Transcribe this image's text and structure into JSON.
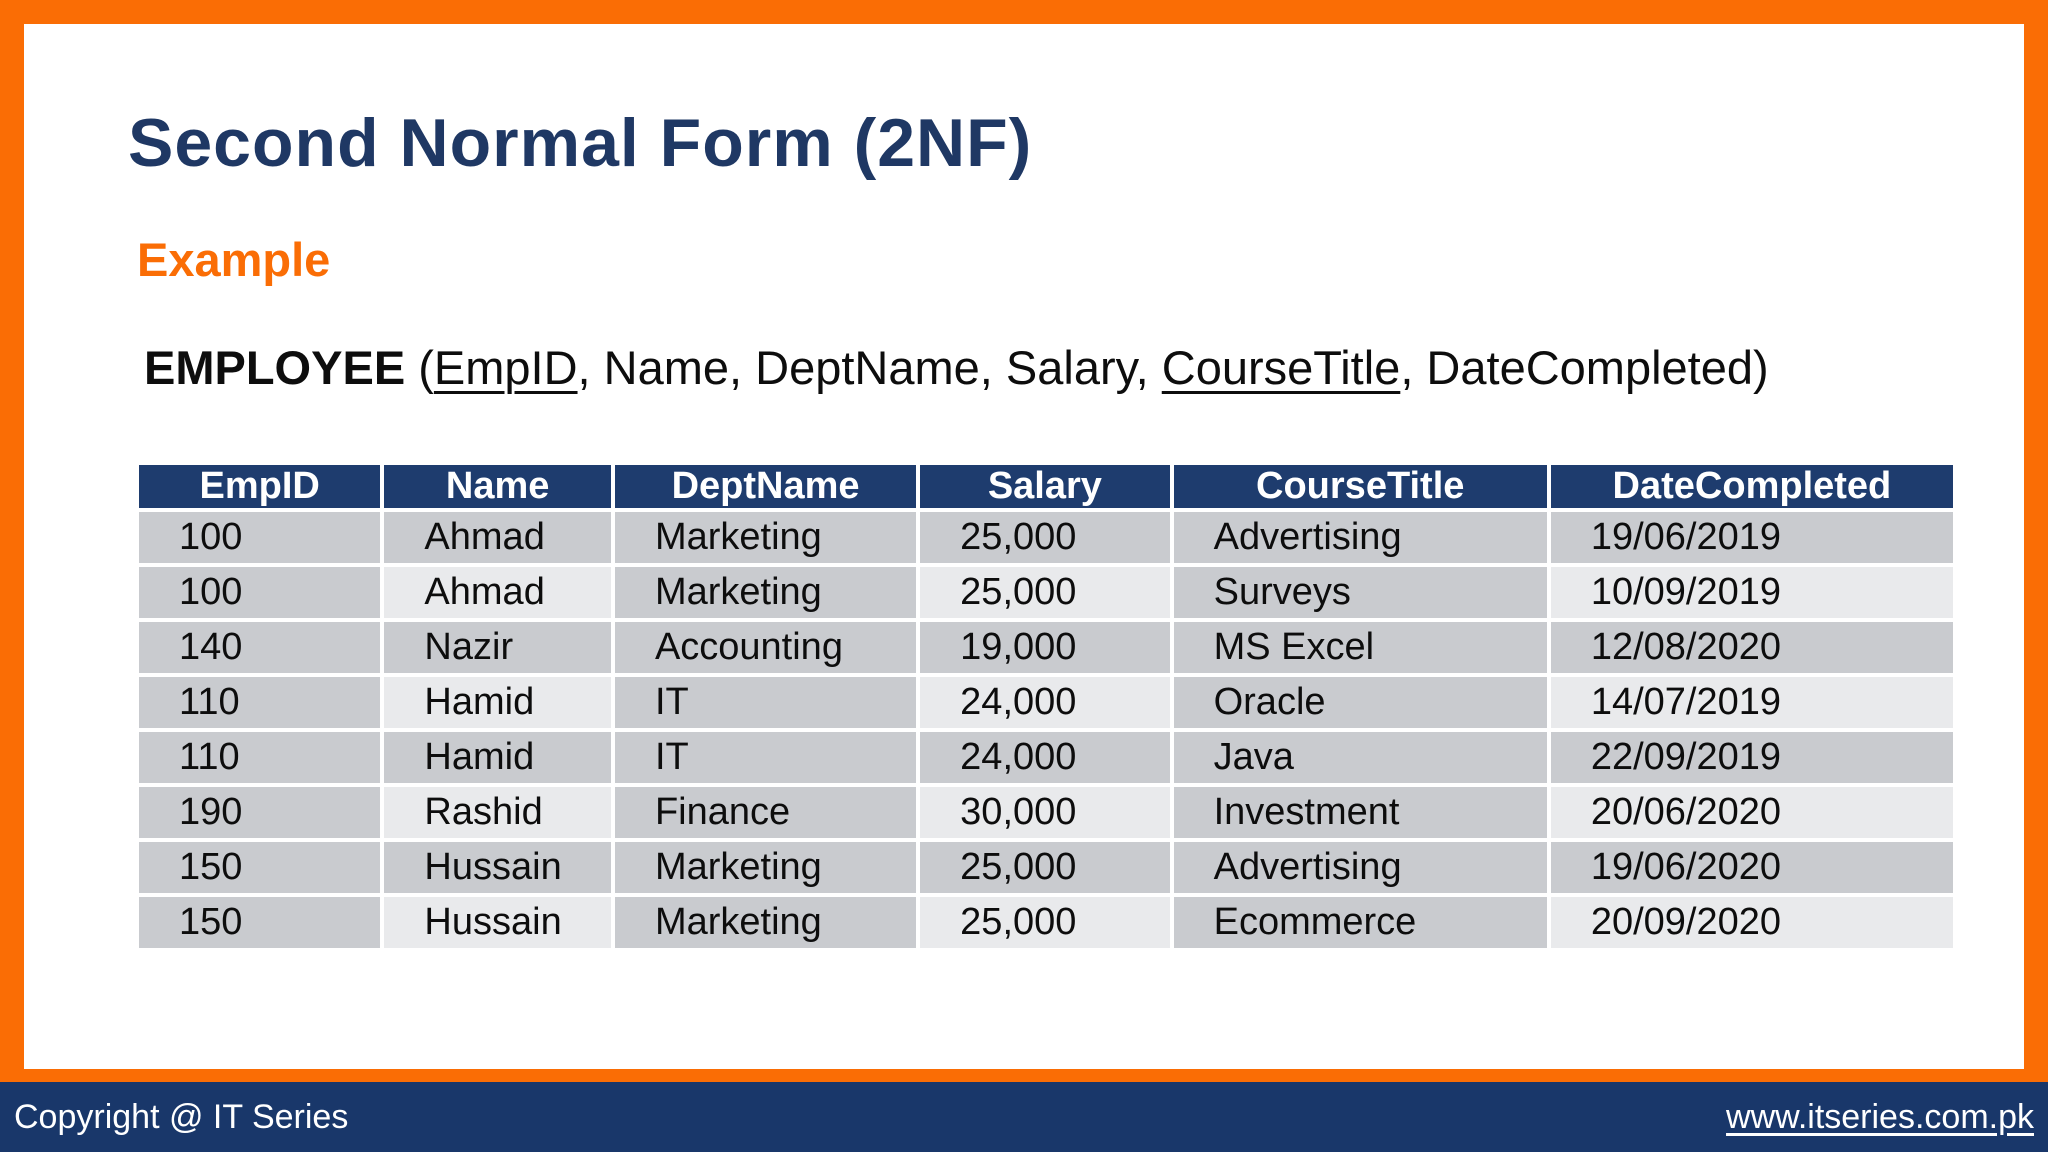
{
  "slide": {
    "title": "Second Normal Form (2NF)",
    "subtitle": "Example",
    "relation_segments": [
      {
        "text": "EMPLOYEE",
        "bold": true,
        "underline": false
      },
      {
        "text": " (",
        "bold": false,
        "underline": false
      },
      {
        "text": "EmpID",
        "bold": false,
        "underline": true
      },
      {
        "text": ", Name, DeptName, Salary, ",
        "bold": false,
        "underline": false
      },
      {
        "text": "CourseTitle",
        "bold": false,
        "underline": true
      },
      {
        "text": ", DateCompleted)",
        "bold": false,
        "underline": false
      }
    ]
  },
  "table": {
    "columns": [
      "EmpID",
      "Name",
      "DeptName",
      "Salary",
      "CourseTitle",
      "DateCompleted"
    ],
    "rows": [
      [
        "100",
        "Ahmad",
        "Marketing",
        "25,000",
        "Advertising",
        "19/06/2019"
      ],
      [
        "100",
        "Ahmad",
        "Marketing",
        "25,000",
        "Surveys",
        "10/09/2019"
      ],
      [
        "140",
        "Nazir",
        "Accounting",
        "19,000",
        "MS Excel",
        "12/08/2020"
      ],
      [
        "110",
        "Hamid",
        "IT",
        "24,000",
        "Oracle",
        "14/07/2019"
      ],
      [
        "110",
        "Hamid",
        "IT",
        "24,000",
        "Java",
        "22/09/2019"
      ],
      [
        "190",
        "Rashid",
        "Finance",
        "30,000",
        "Investment",
        "20/06/2020"
      ],
      [
        "150",
        "Hussain",
        "Marketing",
        "25,000",
        "Advertising",
        "19/06/2020"
      ],
      [
        "150",
        "Hussain",
        "Marketing",
        "25,000",
        "Ecommerce",
        "20/09/2020"
      ]
    ]
  },
  "footer": {
    "copyright": "Copyright @ IT Series",
    "url": "www.itseries.com.pk"
  },
  "colors": {
    "accent_orange": "#FA6D05",
    "title_navy": "#1F3864",
    "table_header_navy": "#1E3C6E",
    "footer_navy": "#19376A",
    "cell_gray": "#C9CBCF",
    "cell_light": "#E9EAEC"
  }
}
